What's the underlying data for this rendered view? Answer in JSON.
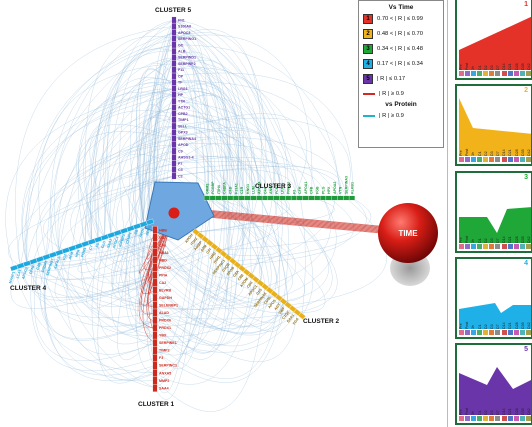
{
  "clusters": [
    {
      "id": "cluster-5",
      "label": "CLUSTER 5",
      "color": "#6a35a8",
      "genes": [
        "FN1",
        "S100A8",
        "APOC3",
        "SERPING1",
        "GC",
        "ALB",
        "SERPIND1",
        "SERPINF2",
        "F11",
        "CP",
        "TF",
        "LRG1",
        "HP",
        "TTR",
        "ACTG1",
        "CPB2",
        "TIMP1",
        "SELL",
        "GPX3",
        "SERPINA4",
        "APOD",
        "C9",
        "AHSG1-4",
        "F7",
        "C5",
        "C2"
      ]
    },
    {
      "id": "cluster-3",
      "label": "CLUSTER 3",
      "color": "#1e9a3a",
      "genes": [
        "ORM2",
        "FCGBP",
        "ITIH4",
        "C4BPA",
        "CFD",
        "F13A1",
        "C1R",
        "KNG1",
        "LUM",
        "APOA4",
        "C4A",
        "ANG",
        "FCN3",
        "LPA",
        "PROS1",
        "F2",
        "CFH",
        "APOA1",
        "CFB",
        "FGB",
        "PLG",
        "HPX",
        "APOA2",
        "VTN",
        "SERPINA3",
        "KLKB1"
      ]
    },
    {
      "id": "cluster-2",
      "label": "CLUSTER 2",
      "color": "#e8b01a",
      "genes": [
        "APOH",
        "ITIH2",
        "AMBP",
        "A2M",
        "CFI",
        "HRG",
        "ITIH1",
        "SERPINC1",
        "C1QB",
        "APOB",
        "C8A",
        "C8B",
        "APOM",
        "C8G",
        "APOC1",
        "C1S",
        "SERPINA6",
        "CD5L",
        "APCS",
        "AGT",
        "VWF",
        "C1QC",
        "SAA1",
        "FGA"
      ]
    },
    {
      "id": "cluster-1",
      "label": "CLUSTER 1",
      "color": "#cc2a1e",
      "genes": [
        "HBB",
        "CAT",
        "CA1",
        "HBA1",
        "HBD",
        "PRDX2",
        "PPIA",
        "CA2",
        "BLVRB",
        "GAPDH",
        "SELENBP1",
        "ALAD",
        "PRDX6",
        "PRDX1",
        "YBX",
        "SERPINE1",
        "TIMP2",
        "F3",
        "SERPINC1",
        "ANXA5",
        "MMP2",
        "SAA4"
      ]
    },
    {
      "id": "cluster-4",
      "label": "CLUSTER 4",
      "color": "#1ea8e0",
      "genes": [
        "APOE",
        "APOF",
        "C6",
        "CFHR1",
        "IGFBP3",
        "APOC4",
        "SAA2",
        "CLU",
        "F5",
        "C7",
        "PON1",
        "HPR",
        "AFM",
        "F12",
        "IGFALS",
        "SERPINA7",
        "CNDP1",
        "C4B",
        "CPN1",
        "APOC2",
        "LCAT",
        "MASP1"
      ]
    }
  ],
  "node": {
    "label": "TIME"
  },
  "legend": {
    "title1": "Vs Time",
    "rows": [
      {
        "num": "1",
        "color": "#e53228",
        "text": "0.70 < | R | ≤ 0.99"
      },
      {
        "num": "2",
        "color": "#f2b31a",
        "text": "0.48 < | R | ≤ 0.70"
      },
      {
        "num": "3",
        "color": "#1fa838",
        "text": "0.34 < | R | ≤ 0.48"
      },
      {
        "num": "4",
        "color": "#1fb0e8",
        "text": "0.17 < | R | ≤ 0.34"
      },
      {
        "num": "5",
        "color": "#6a35a8",
        "text": "| R | ≤ 0.17"
      }
    ],
    "red_line": {
      "color": "#d22a22",
      "text": "| R | ≥ 0.9"
    },
    "title2": "vs Protein",
    "teal_line": {
      "color": "#1fb5c7",
      "text": "| R | ≥ 0.9"
    }
  },
  "panels": [
    {
      "num": "1",
      "color": "#e53228"
    },
    {
      "num": "2",
      "color": "#f2b31a"
    },
    {
      "num": "3",
      "color": "#1fa838"
    },
    {
      "num": "4",
      "color": "#1fb0e8"
    },
    {
      "num": "5",
      "color": "#6a35a8"
    }
  ],
  "timepoints": [
    "Pre",
    "Post",
    "3h",
    "D1",
    "D2",
    "D3",
    "D7",
    "D14",
    "D21",
    "D28",
    "D35",
    "D42"
  ],
  "timepoint_colors": [
    "#e06c8c",
    "#8e6cc8",
    "#3aa7e0",
    "#48b06a",
    "#e0b23a",
    "#e07a3a",
    "#8c8c8c",
    "#d05050",
    "#5078c8",
    "#c85ab4",
    "#50b4b4",
    "#a0a050"
  ]
}
